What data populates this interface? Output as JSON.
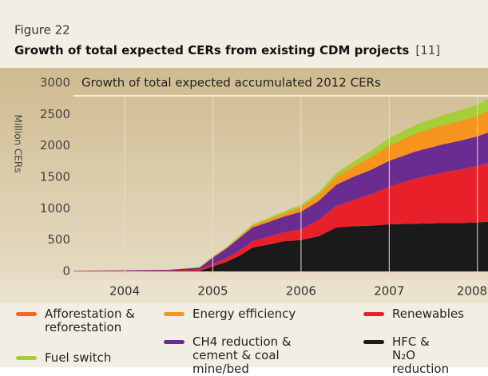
{
  "figure_label": "Figure 22",
  "chart_data": {
    "type": "stacked_area",
    "title": "Growth of total expected CERs from existing CDM projects",
    "reference": "[11]",
    "subtitle": "Growth of total expected accumulated 2012 CERs",
    "y_label": "Million CERs",
    "x": [
      2003.42,
      2004.5,
      2004.85,
      2005.0,
      2005.15,
      2005.3,
      2005.45,
      2005.6,
      2005.8,
      2006.0,
      2006.2,
      2006.4,
      2006.6,
      2006.8,
      2007.0,
      2007.3,
      2007.6,
      2007.8,
      2008.0,
      2008.12
    ],
    "xlim": [
      2003.42,
      2008.12
    ],
    "xticks": [
      2004,
      2005,
      2006,
      2007,
      2008
    ],
    "ylim": [
      0,
      3000
    ],
    "yticks": [
      0,
      500,
      1000,
      1500,
      2000,
      2500,
      3000
    ],
    "series": [
      {
        "name": "HFC & N₂O reduction",
        "color": "#1a1a1a",
        "values": [
          0,
          5,
          10,
          80,
          150,
          250,
          380,
          420,
          480,
          500,
          560,
          700,
          720,
          730,
          750,
          760,
          770,
          770,
          780,
          790
        ]
      },
      {
        "name": "Renewables",
        "color": "#e8202a",
        "values": [
          5,
          10,
          20,
          40,
          60,
          80,
          100,
          120,
          140,
          170,
          260,
          340,
          420,
          500,
          600,
          720,
          800,
          850,
          900,
          940
        ]
      },
      {
        "name": "CH4 reduction & cement & coal mine/bed",
        "color": "#6a2c91",
        "values": [
          5,
          10,
          30,
          100,
          150,
          200,
          220,
          230,
          250,
          280,
          300,
          340,
          370,
          390,
          410,
          430,
          450,
          460,
          470,
          480
        ]
      },
      {
        "name": "Afforestation & reforestation",
        "color": "#f26522",
        "values": [
          0,
          0,
          0,
          0,
          0,
          0,
          0,
          0,
          0,
          5,
          5,
          5,
          5,
          5,
          5,
          5,
          5,
          5,
          5,
          5
        ]
      },
      {
        "name": "Energy efficiency",
        "color": "#f7941d",
        "values": [
          0,
          0,
          5,
          10,
          15,
          20,
          30,
          40,
          50,
          70,
          90,
          120,
          160,
          200,
          240,
          280,
          300,
          310,
          320,
          340
        ]
      },
      {
        "name": "Fuel switch",
        "color": "#a6ce39",
        "values": [
          0,
          0,
          5,
          10,
          10,
          15,
          20,
          25,
          30,
          35,
          45,
          60,
          80,
          100,
          120,
          140,
          160,
          170,
          180,
          190
        ]
      }
    ]
  }
}
